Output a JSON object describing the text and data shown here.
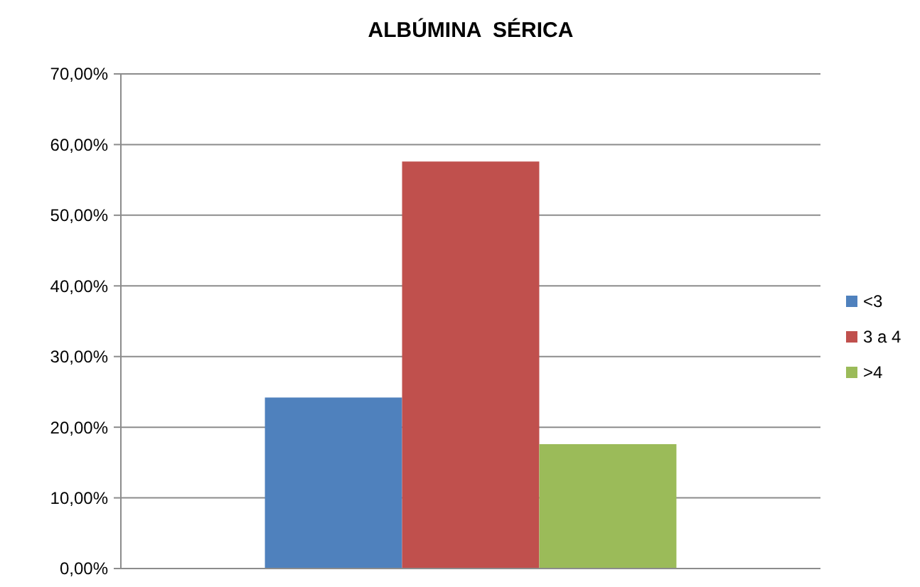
{
  "chart_data": {
    "type": "bar",
    "title": "ALBÚMINA  SÉRICA",
    "categories": [
      null
    ],
    "series": [
      {
        "name": "<3",
        "color": "#4f81bd",
        "values": [
          24.2
        ]
      },
      {
        "name": "3 a 4",
        "color": "#c0504d",
        "values": [
          57.6
        ]
      },
      {
        "name": ">4",
        "color": "#9bbb59",
        "values": [
          17.6
        ]
      }
    ],
    "ylim": [
      0,
      70
    ],
    "yticks": [
      {
        "value": 0,
        "label": "0,00%"
      },
      {
        "value": 10,
        "label": "10,00%"
      },
      {
        "value": 20,
        "label": "20,00%"
      },
      {
        "value": 30,
        "label": "30,00%"
      },
      {
        "value": 40,
        "label": "40,00%"
      },
      {
        "value": 50,
        "label": "50,00%"
      },
      {
        "value": 60,
        "label": "60,00%"
      },
      {
        "value": 70,
        "label": "70,00%"
      }
    ],
    "grid": "y",
    "legend": "right"
  }
}
